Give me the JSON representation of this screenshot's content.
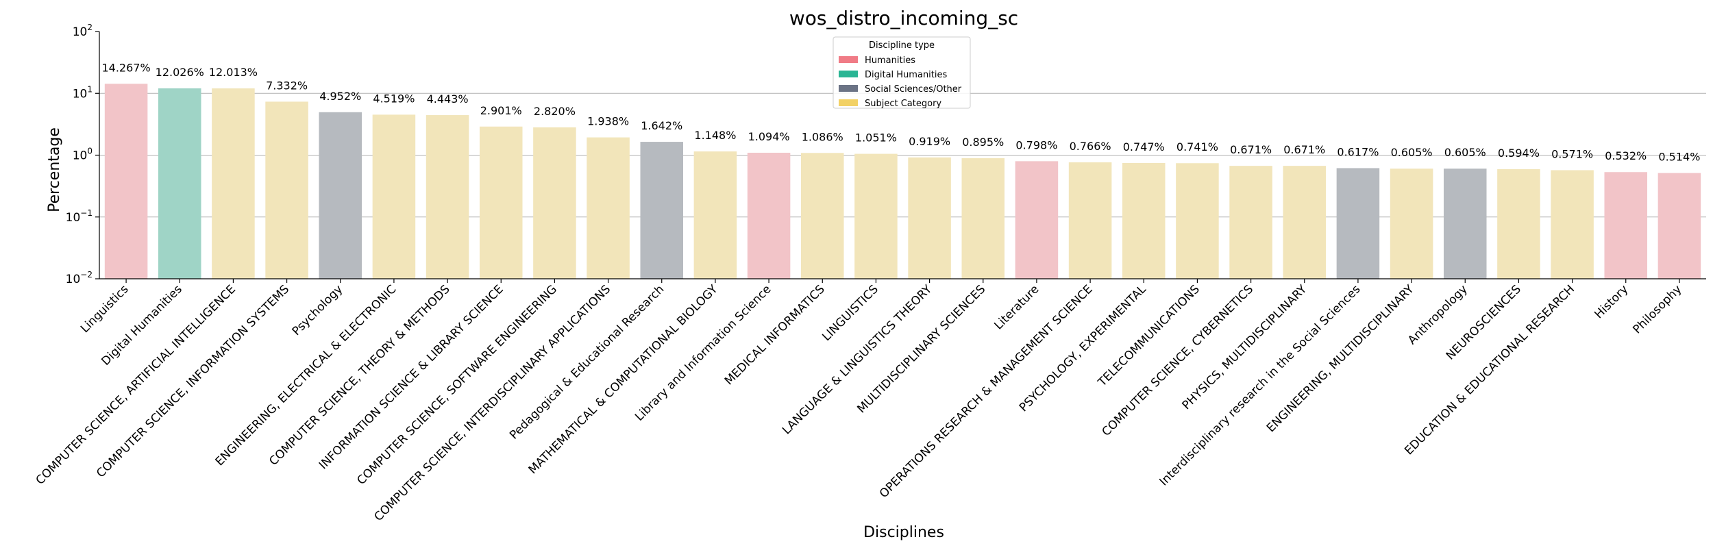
{
  "chart_data": {
    "type": "bar",
    "title": "wos_distro_incoming_sc",
    "xlabel": "Disciplines",
    "ylabel": "Percentage",
    "yscale": "log",
    "ylim": [
      0.01,
      100
    ],
    "yticks": [
      {
        "value": 100,
        "base": "10",
        "exp": "2"
      },
      {
        "value": 10,
        "base": "10",
        "exp": "1"
      },
      {
        "value": 1,
        "base": "10",
        "exp": "0"
      },
      {
        "value": 0.1,
        "base": "10",
        "exp": "−1"
      },
      {
        "value": 0.01,
        "base": "10",
        "exp": "−2"
      }
    ],
    "grid": "horizontal",
    "legend": {
      "title": "Discipline type",
      "placement": "top-center",
      "entries": [
        {
          "label": "Humanities",
          "color": "#f07b86"
        },
        {
          "label": "Digital Humanities",
          "color": "#2ab594"
        },
        {
          "label": "Social Sciences/Other",
          "color": "#6b7385"
        },
        {
          "label": "Subject Category",
          "color": "#f2d165"
        }
      ]
    },
    "bar_colors": {
      "Humanities": "#f2c4c8",
      "Digital Humanities": "#9fd4c6",
      "Social Sciences/Other": "#b6babf",
      "Subject Category": "#f2e5ba"
    },
    "bars": [
      {
        "category": "Linguistics",
        "value": 14.267,
        "label": "14.267%",
        "type": "Humanities"
      },
      {
        "category": "Digital Humanities",
        "value": 12.026,
        "label": "12.026%",
        "type": "Digital Humanities"
      },
      {
        "category": "COMPUTER SCIENCE, ARTIFICIAL INTELLIGENCE",
        "value": 12.013,
        "label": "12.013%",
        "type": "Subject Category"
      },
      {
        "category": "COMPUTER SCIENCE, INFORMATION SYSTEMS",
        "value": 7.332,
        "label": "7.332%",
        "type": "Subject Category"
      },
      {
        "category": "Psychology",
        "value": 4.952,
        "label": "4.952%",
        "type": "Social Sciences/Other"
      },
      {
        "category": "ENGINEERING, ELECTRICAL & ELECTRONIC",
        "value": 4.519,
        "label": "4.519%",
        "type": "Subject Category"
      },
      {
        "category": "COMPUTER SCIENCE, THEORY & METHODS",
        "value": 4.443,
        "label": "4.443%",
        "type": "Subject Category"
      },
      {
        "category": "INFORMATION SCIENCE & LIBRARY SCIENCE",
        "value": 2.901,
        "label": "2.901%",
        "type": "Subject Category"
      },
      {
        "category": "COMPUTER SCIENCE, SOFTWARE ENGINEERING",
        "value": 2.82,
        "label": "2.820%",
        "type": "Subject Category"
      },
      {
        "category": "COMPUTER SCIENCE, INTERDISCIPLINARY APPLICATIONS",
        "value": 1.938,
        "label": "1.938%",
        "type": "Subject Category"
      },
      {
        "category": "Pedagogical & Educational Research",
        "value": 1.642,
        "label": "1.642%",
        "type": "Social Sciences/Other"
      },
      {
        "category": "MATHEMATICAL & COMPUTATIONAL BIOLOGY",
        "value": 1.148,
        "label": "1.148%",
        "type": "Subject Category"
      },
      {
        "category": "Library and Information Science",
        "value": 1.094,
        "label": "1.094%",
        "type": "Humanities"
      },
      {
        "category": "MEDICAL INFORMATICS",
        "value": 1.086,
        "label": "1.086%",
        "type": "Subject Category"
      },
      {
        "category": "LINGUISTICS",
        "value": 1.051,
        "label": "1.051%",
        "type": "Subject Category"
      },
      {
        "category": "LANGUAGE & LINGUISTICS THEORY",
        "value": 0.919,
        "label": "0.919%",
        "type": "Subject Category"
      },
      {
        "category": "MULTIDISCIPLINARY SCIENCES",
        "value": 0.895,
        "label": "0.895%",
        "type": "Subject Category"
      },
      {
        "category": "Literature",
        "value": 0.798,
        "label": "0.798%",
        "type": "Humanities"
      },
      {
        "category": "OPERATIONS RESEARCH & MANAGEMENT SCIENCE",
        "value": 0.766,
        "label": "0.766%",
        "type": "Subject Category"
      },
      {
        "category": "PSYCHOLOGY, EXPERIMENTAL",
        "value": 0.747,
        "label": "0.747%",
        "type": "Subject Category"
      },
      {
        "category": "TELECOMMUNICATIONS",
        "value": 0.741,
        "label": "0.741%",
        "type": "Subject Category"
      },
      {
        "category": "COMPUTER SCIENCE, CYBERNETICS",
        "value": 0.671,
        "label": "0.671%",
        "type": "Subject Category"
      },
      {
        "category": "PHYSICS, MULTIDISCIPLINARY",
        "value": 0.671,
        "label": "0.671%",
        "type": "Subject Category"
      },
      {
        "category": "Interdisciplinary research in the Social Sciences",
        "value": 0.617,
        "label": "0.617%",
        "type": "Social Sciences/Other"
      },
      {
        "category": "ENGINEERING, MULTIDISCIPLINARY",
        "value": 0.605,
        "label": "0.605%",
        "type": "Subject Category"
      },
      {
        "category": "Anthropology",
        "value": 0.605,
        "label": "0.605%",
        "type": "Social Sciences/Other"
      },
      {
        "category": "NEUROSCIENCES",
        "value": 0.594,
        "label": "0.594%",
        "type": "Subject Category"
      },
      {
        "category": "EDUCATION & EDUCATIONAL RESEARCH",
        "value": 0.571,
        "label": "0.571%",
        "type": "Subject Category"
      },
      {
        "category": "History",
        "value": 0.532,
        "label": "0.532%",
        "type": "Humanities"
      },
      {
        "category": "Philosophy",
        "value": 0.514,
        "label": "0.514%",
        "type": "Humanities"
      }
    ]
  }
}
